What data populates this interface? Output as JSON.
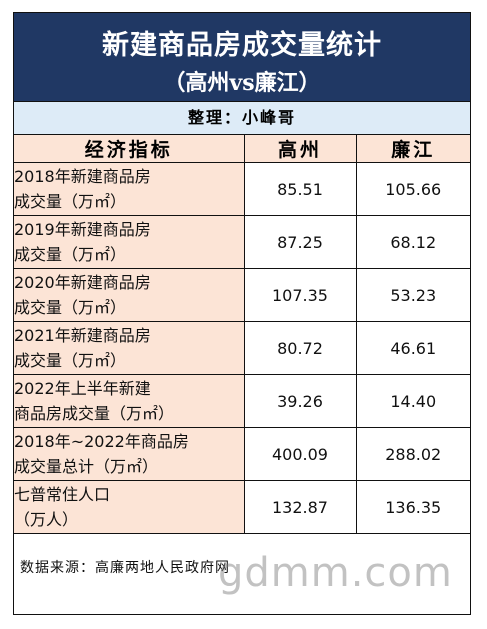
{
  "title": "新建商品房成交量统计",
  "subtitle": "（高州vs廉江）",
  "author": "整理：小峰哥",
  "header": {
    "indicator": "经济指标",
    "city_a": "高州",
    "city_b": "廉江"
  },
  "rows": [
    {
      "line1": "2018年新建商品房",
      "line2": "成交量（万㎡）",
      "a": "85.51",
      "b": "105.66"
    },
    {
      "line1": "2019年新建商品房",
      "line2": "成交量（万㎡）",
      "a": "87.25",
      "b": "68.12"
    },
    {
      "line1": "2020年新建商品房",
      "line2": "成交量（万㎡）",
      "a": "107.35",
      "b": "53.23"
    },
    {
      "line1": "2021年新建商品房",
      "line2": "成交量（万㎡）",
      "a": "80.72",
      "b": "46.61"
    },
    {
      "line1": "2022年上半年新建",
      "line2": "商品房成交量（万㎡）",
      "a": "39.26",
      "b": "14.40"
    },
    {
      "line1": "2018年~2022年商品房",
      "line2": "成交量总计（万㎡）",
      "a": "400.09",
      "b": "288.02"
    },
    {
      "line1": "七普常住人口",
      "line2": "（万人）",
      "a": "132.87",
      "b": "136.35"
    }
  ],
  "source": "数据来源：高廉两地人民政府网",
  "watermark": "gdmm.com",
  "colors": {
    "title_bg": "#203864",
    "author_bg": "#ddebf7",
    "indicator_bg": "#fce4d6"
  }
}
